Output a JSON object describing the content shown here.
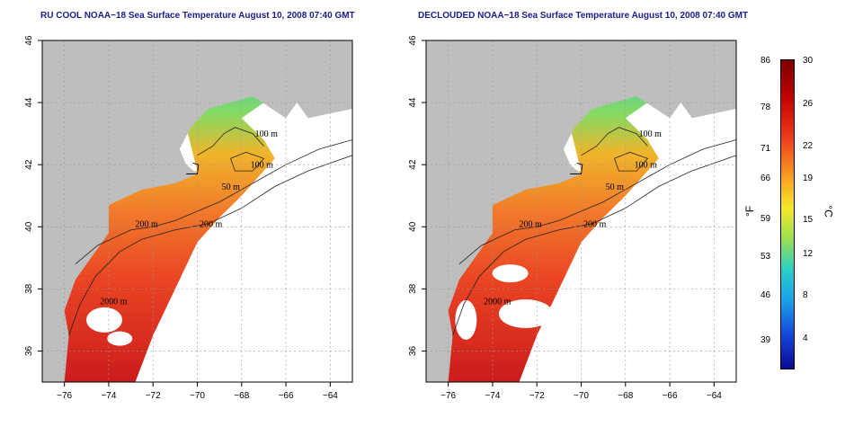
{
  "panels": [
    {
      "title": "RU COOL NOAA−18 Sea Surface Temperature August 10, 2008 07:40 GMT",
      "contour_labels": [
        "100 m",
        "100 m",
        "50 m",
        "200 m",
        "200 m",
        "2000 m"
      ]
    },
    {
      "title": "DECLOUDED NOAA−18 Sea Surface Temperature August 10, 2008 07:40 GMT",
      "contour_labels": [
        "100 m",
        "100 m",
        "50 m",
        "200 m",
        "200 m",
        "2000 m"
      ]
    }
  ],
  "axes": {
    "x_ticks": [
      "−76",
      "−74",
      "−72",
      "−70",
      "−68",
      "−66",
      "−64"
    ],
    "y_ticks": [
      "36",
      "38",
      "40",
      "42",
      "44",
      "46"
    ],
    "xlim": [
      -77,
      -63
    ],
    "ylim": [
      35,
      46
    ]
  },
  "colorbar": {
    "fahrenheit_ticks": [
      "86",
      "78",
      "71",
      "66",
      "59",
      "53",
      "46",
      "39"
    ],
    "celsius_ticks": [
      "30",
      "26",
      "22",
      "19",
      "15",
      "12",
      "8",
      "4"
    ],
    "fahrenheit_unit": "°F",
    "celsius_unit": "°C"
  },
  "colors": {
    "land": "#bebebe",
    "cloud": "#ffffff",
    "title": "#1c1c8c"
  }
}
